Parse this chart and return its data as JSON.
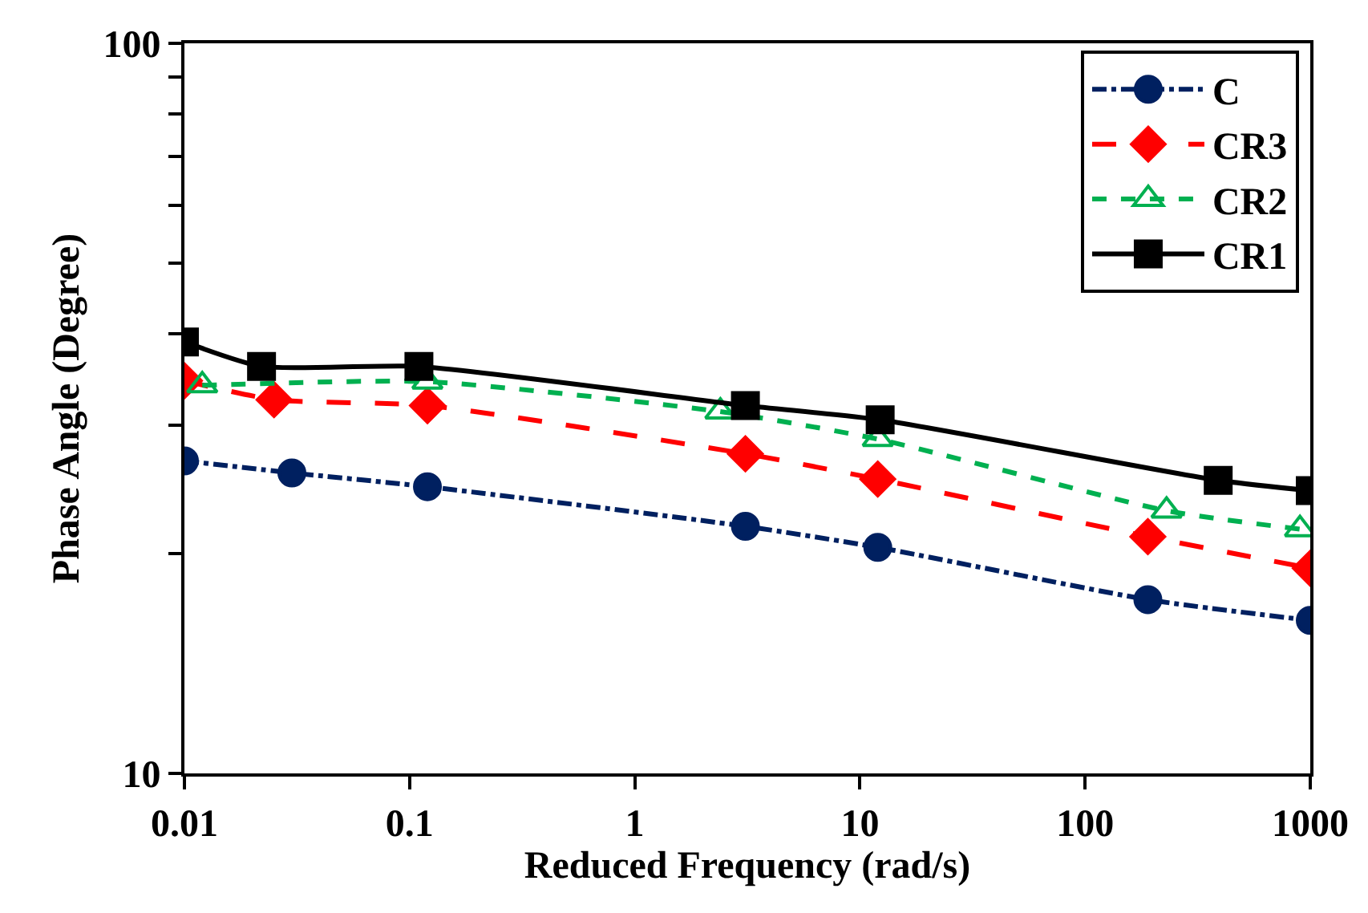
{
  "chart_data": {
    "type": "line",
    "xlabel": "Reduced Frequency (rad/s)",
    "ylabel": "Phase Angle (Degree)",
    "log": "xy",
    "xlim": [
      0.01,
      1000
    ],
    "xticks": [
      0.01,
      0.1,
      1,
      10,
      100,
      1000
    ],
    "ylim": [
      10,
      100
    ],
    "yticks": [
      10,
      {
        "value": 20,
        "label": null
      },
      {
        "value": 30,
        "label": null
      },
      {
        "value": 40,
        "label": null
      },
      {
        "value": 50,
        "label": null
      },
      {
        "value": 60,
        "label": null
      },
      {
        "value": 70,
        "label": null
      },
      {
        "value": 80,
        "label": null
      },
      {
        "value": 90,
        "label": null
      },
      100
    ],
    "legend": "top right",
    "series": [
      {
        "name": "C",
        "color": "#002060",
        "marker": "circle",
        "line_style": "dashdot",
        "x": [
          0.01,
          0.03,
          0.12,
          3.1,
          12,
          190,
          1000
        ],
        "values": [
          26.8,
          25.8,
          24.7,
          21.8,
          20.4,
          17.3,
          16.2
        ]
      },
      {
        "name": "CR3",
        "color": "#ff0000",
        "marker": "diamond",
        "line_style": "dashed",
        "x": [
          0.01,
          0.025,
          0.12,
          3.1,
          12,
          190,
          1000
        ],
        "values": [
          34.5,
          32.5,
          31.9,
          27.4,
          25.3,
          21.1,
          19.1
        ]
      },
      {
        "name": "CR2",
        "color": "#00b050",
        "marker": "triangle",
        "line_style": "dotted",
        "x": [
          0.012,
          0.12,
          2.4,
          12,
          230,
          900
        ],
        "values": [
          34.0,
          34.4,
          31.3,
          28.7,
          22.9,
          21.6
        ]
      },
      {
        "name": "CR1",
        "color": "#000000",
        "marker": "square",
        "line_style": "solid",
        "x": [
          0.01,
          0.022,
          0.11,
          3.1,
          12.3,
          390,
          1000
        ],
        "values": [
          39.0,
          36.1,
          36.1,
          31.9,
          30.5,
          25.2,
          24.4
        ]
      }
    ]
  }
}
